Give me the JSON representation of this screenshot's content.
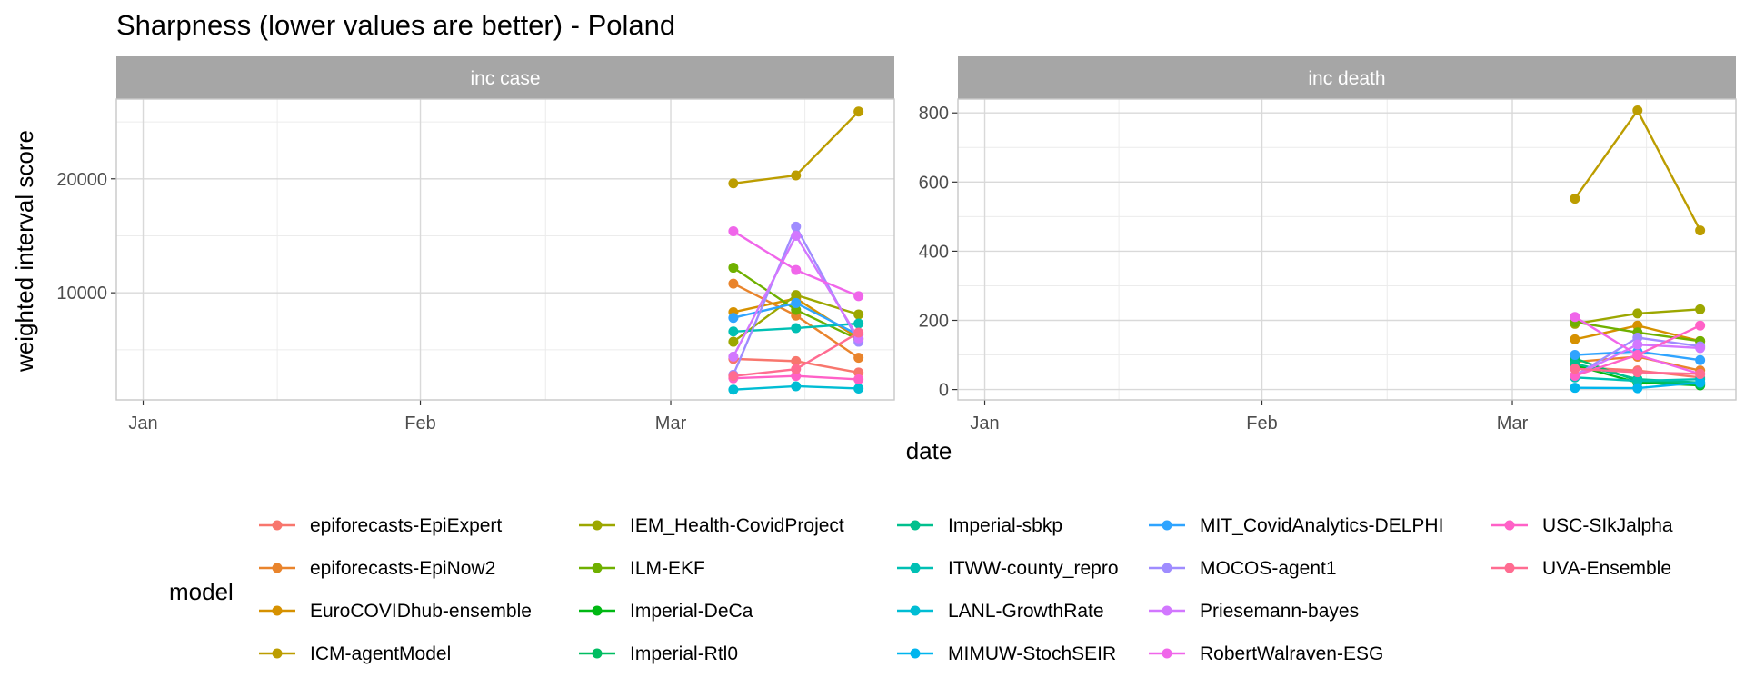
{
  "chart_data": {
    "type": "line",
    "title": "Sharpness (lower values are better) - Poland",
    "xlabel": "date",
    "ylabel": "weighted interval score",
    "x_tick_labels": [
      "Jan",
      "Feb",
      "Mar"
    ],
    "x_dates": [
      "2021-03-08",
      "2021-03-15",
      "2021-03-22"
    ],
    "legend_title": "model",
    "legend_position": "bottom",
    "grid": true,
    "models": [
      {
        "name": "epiforecasts-EpiExpert",
        "color": "#F8766D"
      },
      {
        "name": "epiforecasts-EpiNow2",
        "color": "#E9842C"
      },
      {
        "name": "EuroCOVIDhub-ensemble",
        "color": "#D69100"
      },
      {
        "name": "ICM-agentModel",
        "color": "#BC9D00"
      },
      {
        "name": "IEM_Health-CovidProject",
        "color": "#9CA700"
      },
      {
        "name": "ILM-EKF",
        "color": "#6FB000"
      },
      {
        "name": "Imperial-DeCa",
        "color": "#00B813"
      },
      {
        "name": "Imperial-Rtl0",
        "color": "#00BD61"
      },
      {
        "name": "Imperial-sbkp",
        "color": "#00C08E"
      },
      {
        "name": "ITWW-county_repro",
        "color": "#00C0B4"
      },
      {
        "name": "LANL-GrowthRate",
        "color": "#00BDD4"
      },
      {
        "name": "MIMUW-StochSEIR",
        "color": "#00B5EE"
      },
      {
        "name": "MIT_CovidAnalytics-DELPHI",
        "color": "#2FA4FF"
      },
      {
        "name": "MOCOS-agent1",
        "color": "#9F8CFF"
      },
      {
        "name": "Priesemann-bayes",
        "color": "#D277FF"
      },
      {
        "name": "RobertWalraven-ESG",
        "color": "#F066EA"
      },
      {
        "name": "USC-SIkJalpha",
        "color": "#FF61C7"
      },
      {
        "name": "UVA-Ensemble",
        "color": "#FF6C91"
      }
    ],
    "panels": [
      {
        "strip": "inc case",
        "y_ticks": [
          10000,
          20000
        ],
        "ylim": [
          600,
          27000
        ],
        "series": [
          {
            "name": "epiforecasts-EpiExpert",
            "values": [
              4200,
              4000,
              3000
            ]
          },
          {
            "name": "epiforecasts-EpiNow2",
            "values": [
              10800,
              8000,
              4300
            ]
          },
          {
            "name": "EuroCOVIDhub-ensemble",
            "values": [
              8300,
              9500,
              6000
            ]
          },
          {
            "name": "ICM-agentModel",
            "values": [
              19600,
              20300,
              25900
            ]
          },
          {
            "name": "IEM_Health-CovidProject",
            "values": [
              5700,
              9800,
              8100
            ]
          },
          {
            "name": "ILM-EKF",
            "values": [
              12200,
              8500,
              5900
            ]
          },
          {
            "name": "Imperial-DeCa",
            "values": null
          },
          {
            "name": "Imperial-Rtl0",
            "values": null
          },
          {
            "name": "Imperial-sbkp",
            "values": null
          },
          {
            "name": "ITWW-county_repro",
            "values": [
              6600,
              6900,
              7300
            ]
          },
          {
            "name": "LANL-GrowthRate",
            "values": [
              1500,
              1800,
              1600
            ]
          },
          {
            "name": "MIMUW-StochSEIR",
            "values": null
          },
          {
            "name": "MIT_CovidAnalytics-DELPHI",
            "values": [
              7800,
              9100,
              6300
            ]
          },
          {
            "name": "MOCOS-agent1",
            "values": [
              2800,
              15800,
              5700
            ]
          },
          {
            "name": "Priesemann-bayes",
            "values": [
              4400,
              15000,
              6000
            ]
          },
          {
            "name": "RobertWalraven-ESG",
            "values": [
              15400,
              12000,
              9700
            ]
          },
          {
            "name": "USC-SIkJalpha",
            "values": [
              2500,
              2700,
              2400
            ]
          },
          {
            "name": "UVA-Ensemble",
            "values": [
              2700,
              3300,
              6500
            ]
          }
        ]
      },
      {
        "strip": "inc death",
        "y_ticks": [
          0,
          200,
          400,
          600,
          800
        ],
        "ylim": [
          -30,
          840
        ],
        "series": [
          {
            "name": "epiforecasts-EpiExpert",
            "values": [
              65,
              55,
              35
            ]
          },
          {
            "name": "epiforecasts-EpiNow2",
            "values": [
              80,
              95,
              55
            ]
          },
          {
            "name": "EuroCOVIDhub-ensemble",
            "values": [
              145,
              185,
              140
            ]
          },
          {
            "name": "ICM-agentModel",
            "values": [
              552,
              807,
              460
            ]
          },
          {
            "name": "IEM_Health-CovidProject",
            "values": [
              190,
              220,
              232
            ]
          },
          {
            "name": "ILM-EKF",
            "values": [
              195,
              165,
              140
            ]
          },
          {
            "name": "Imperial-DeCa",
            "values": [
              70,
              20,
              12
            ]
          },
          {
            "name": "Imperial-Rtl0",
            "values": [
              90,
              25,
              15
            ]
          },
          {
            "name": "Imperial-sbkp",
            "values": [
              75,
              30,
              20
            ]
          },
          {
            "name": "ITWW-county_repro",
            "values": [
              35,
              25,
              30
            ]
          },
          {
            "name": "LANL-GrowthRate",
            "values": null
          },
          {
            "name": "MIMUW-StochSEIR",
            "values": [
              5,
              4,
              20
            ]
          },
          {
            "name": "MIT_CovidAnalytics-DELPHI",
            "values": [
              100,
              110,
              85
            ]
          },
          {
            "name": "MOCOS-agent1",
            "values": [
              40,
              150,
              125
            ]
          },
          {
            "name": "Priesemann-bayes",
            "values": [
              40,
              130,
              120
            ]
          },
          {
            "name": "RobertWalraven-ESG",
            "values": [
              210,
              100,
              45
            ]
          },
          {
            "name": "USC-SIkJalpha",
            "values": [
              40,
              100,
              185
            ]
          },
          {
            "name": "UVA-Ensemble",
            "values": [
              60,
              50,
              45
            ]
          }
        ]
      }
    ]
  }
}
